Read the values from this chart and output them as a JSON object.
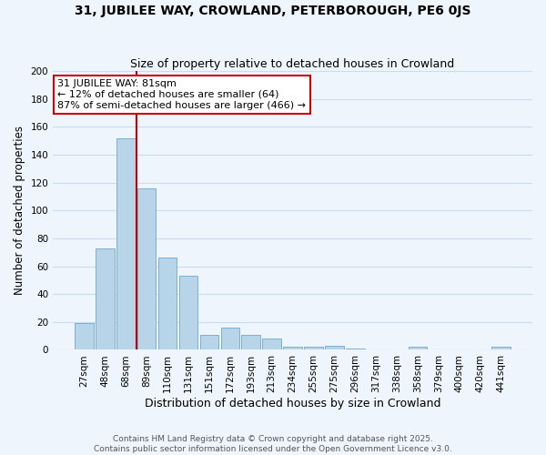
{
  "title": "31, JUBILEE WAY, CROWLAND, PETERBOROUGH, PE6 0JS",
  "subtitle": "Size of property relative to detached houses in Crowland",
  "xlabel": "Distribution of detached houses by size in Crowland",
  "ylabel": "Number of detached properties",
  "bar_labels": [
    "27sqm",
    "48sqm",
    "68sqm",
    "89sqm",
    "110sqm",
    "131sqm",
    "151sqm",
    "172sqm",
    "193sqm",
    "213sqm",
    "234sqm",
    "255sqm",
    "275sqm",
    "296sqm",
    "317sqm",
    "338sqm",
    "358sqm",
    "379sqm",
    "400sqm",
    "420sqm",
    "441sqm"
  ],
  "bar_values": [
    19,
    73,
    152,
    116,
    66,
    53,
    11,
    16,
    11,
    8,
    2,
    2,
    3,
    1,
    0,
    0,
    2,
    0,
    0,
    0,
    2
  ],
  "bar_color": "#b8d4e8",
  "bar_edge_color": "#7bafd4",
  "vline_x_index": 3,
  "vline_color": "#cc0000",
  "annotation_title": "31 JUBILEE WAY: 81sqm",
  "annotation_line1": "← 12% of detached houses are smaller (64)",
  "annotation_line2": "87% of semi-detached houses are larger (466) →",
  "annotation_box_color": "#ffffff",
  "annotation_box_edge_color": "#cc0000",
  "ylim": [
    0,
    200
  ],
  "yticks": [
    0,
    20,
    40,
    60,
    80,
    100,
    120,
    140,
    160,
    180,
    200
  ],
  "grid_color": "#c8ddf0",
  "footer1": "Contains HM Land Registry data © Crown copyright and database right 2025.",
  "footer2": "Contains public sector information licensed under the Open Government Licence v3.0.",
  "title_fontsize": 10,
  "subtitle_fontsize": 9,
  "xlabel_fontsize": 9,
  "ylabel_fontsize": 8.5,
  "tick_fontsize": 7.5,
  "footer_fontsize": 6.5,
  "annotation_fontsize": 8,
  "background_color": "#eef5fc"
}
